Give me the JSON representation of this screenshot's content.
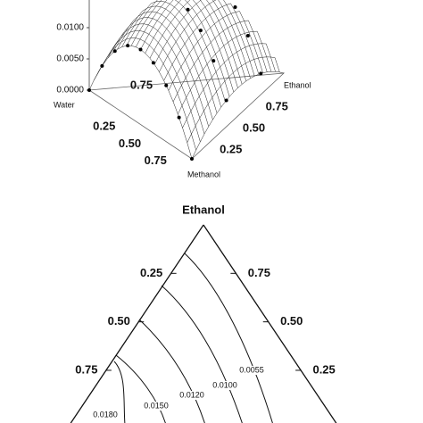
{
  "chart_data": [
    {
      "type": "surface",
      "axis_labels": {
        "water": "Water",
        "ethanol": "Ethanol",
        "methanol": "Methanol"
      },
      "zticks": [
        {
          "value": 0,
          "label": "0.0000"
        },
        {
          "value": 0.005,
          "label": "0.0050"
        },
        {
          "value": 0.01,
          "label": "0.0100"
        }
      ],
      "water_ticks": [
        0.25,
        {
          "value": 0.5,
          "label": "0.50"
        },
        0.75
      ],
      "ethanol_ticks": [
        0.75,
        {
          "value": 0.5,
          "label": "0.50"
        },
        0.25
      ],
      "back_ticks": [
        0.75
      ]
    },
    {
      "type": "ternary",
      "top_label": "Ethanol",
      "left_ticks": [
        0.25,
        {
          "value": 0.5,
          "label": "0.50"
        },
        0.75
      ],
      "right_ticks": [
        0.75,
        {
          "value": 0.5,
          "label": "0.50"
        },
        0.25
      ],
      "contours": [
        {
          "value": 0.018,
          "label": "0.0180"
        },
        {
          "value": 0.015,
          "label": "0.0150"
        },
        {
          "value": 0.012,
          "label": "0.0120"
        },
        {
          "value": 0.01,
          "label": "0.0100"
        },
        0.0055
      ]
    }
  ]
}
